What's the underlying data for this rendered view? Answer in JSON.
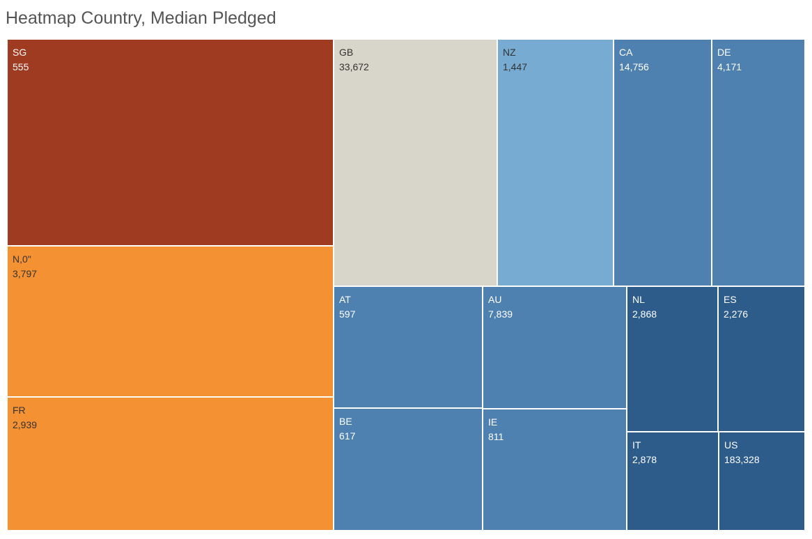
{
  "title": "Heatmap Country, Median Pledged",
  "chart_data": {
    "type": "treemap",
    "title": "Heatmap Country, Median Pledged",
    "items": [
      {
        "country": "SG",
        "value": 555,
        "value_label": "555",
        "color": "#9e3b21",
        "text_color": "#ffffff"
      },
      {
        "country": "N,0\"",
        "value": 3797,
        "value_label": "3,797",
        "color": "#f49133",
        "text_color": "#333333"
      },
      {
        "country": "FR",
        "value": 2939,
        "value_label": "2,939",
        "color": "#f49133",
        "text_color": "#333333"
      },
      {
        "country": "GB",
        "value": 33672,
        "value_label": "33,672",
        "color": "#d8d5ca",
        "text_color": "#333333"
      },
      {
        "country": "NZ",
        "value": 1447,
        "value_label": "1,447",
        "color": "#77abd2",
        "text_color": "#333333"
      },
      {
        "country": "CA",
        "value": 14756,
        "value_label": "14,756",
        "color": "#4f81b0",
        "text_color": "#ffffff"
      },
      {
        "country": "DE",
        "value": 4171,
        "value_label": "4,171",
        "color": "#4f81b0",
        "text_color": "#ffffff"
      },
      {
        "country": "AT",
        "value": 597,
        "value_label": "597",
        "color": "#4f81b0",
        "text_color": "#ffffff"
      },
      {
        "country": "AU",
        "value": 7839,
        "value_label": "7,839",
        "color": "#4f81b0",
        "text_color": "#ffffff"
      },
      {
        "country": "BE",
        "value": 617,
        "value_label": "617",
        "color": "#4f81b0",
        "text_color": "#ffffff"
      },
      {
        "country": "IE",
        "value": 811,
        "value_label": "811",
        "color": "#4f81b0",
        "text_color": "#ffffff"
      },
      {
        "country": "NL",
        "value": 2868,
        "value_label": "2,868",
        "color": "#2d5c8a",
        "text_color": "#ffffff"
      },
      {
        "country": "ES",
        "value": 2276,
        "value_label": "2,276",
        "color": "#2d5c8a",
        "text_color": "#ffffff"
      },
      {
        "country": "IT",
        "value": 2878,
        "value_label": "2,878",
        "color": "#2d5c8a",
        "text_color": "#ffffff"
      },
      {
        "country": "US",
        "value": 183328,
        "value_label": "183,328",
        "color": "#2d5c8a",
        "text_color": "#ffffff"
      }
    ]
  }
}
